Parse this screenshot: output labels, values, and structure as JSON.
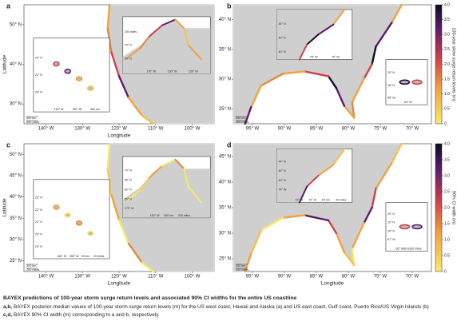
{
  "panels": [
    {
      "label": "a",
      "y_axis_label": "Latitude",
      "x_axis_label": "Longitude",
      "lat_ticks": [
        "50° N",
        "40° N",
        "30° N"
      ],
      "lon_ticks": [
        "140° W",
        "130° W",
        "120° W",
        "110° W",
        "100° W"
      ],
      "inset_texts": [
        "24° N",
        "22° N",
        "20° N",
        "160° W",
        "150° W",
        "300 km",
        "200 miles",
        "70° N",
        "60° N",
        "170° W",
        "150° W",
        "130° W"
      ],
      "scale": [
        "500 km",
        "500 miles"
      ]
    },
    {
      "label": "b",
      "lat_ticks": [
        "40° N",
        "35° N",
        "30° N",
        "25° N"
      ],
      "lon_ticks": [
        "95° W",
        "90° W",
        "85° W",
        "80° W",
        "75° W",
        "70° W"
      ],
      "inset_texts": [
        "44° N",
        "42° N",
        "40° N",
        "75° W",
        "70° W",
        "20° N",
        "18° N",
        "68° W",
        "64° W"
      ],
      "scale": [
        "500 km",
        "200 miles"
      ]
    },
    {
      "label": "c",
      "y_axis_label": "Latitude",
      "x_axis_label": "Longitude",
      "lat_ticks": [
        "50° N",
        "45° N",
        "40° N",
        "35° N",
        "30° N",
        "25° N"
      ],
      "lon_ticks": [
        "140° W",
        "130° W",
        "120° W",
        "110° W",
        "100° W"
      ],
      "inset_texts": [
        "23° N",
        "22° N",
        "21° N",
        "20° N",
        "19° N",
        "160° W",
        "156° W",
        "50 km",
        "20 miles",
        "70° N",
        "65° N",
        "60° N",
        "55° N",
        "170° W",
        "150° W",
        "500 km",
        "200 miles"
      ],
      "scale": [
        "300 km",
        "200 miles"
      ]
    },
    {
      "label": "d",
      "x_axis_label": "Longitude",
      "lat_ticks": [
        "45° N",
        "40° N",
        "35° N",
        "30° N",
        "25° N"
      ],
      "lon_ticks": [
        "95° W",
        "90° W",
        "85° W",
        "80° W",
        "75° W",
        "70° W"
      ],
      "inset_texts": [
        "44° N",
        "42° N",
        "40° N",
        "74° W",
        "72° W",
        "70° W",
        "50 km",
        "20 miles",
        "20° N",
        "19° N",
        "18° N",
        "67° W",
        "65° W",
        "50 km",
        "20 miles"
      ],
      "scale": [
        "200 km",
        "100 miles"
      ]
    }
  ],
  "colorbars": [
    {
      "title": "100-year skew surge return levels (m)",
      "ticks": [
        "0",
        "0.5",
        "1.0",
        "1.5",
        "2.0",
        "2.5",
        "3.0",
        "3.5",
        "4.0"
      ]
    },
    {
      "title": "90% CI width (m)",
      "ticks": [
        "0",
        "0.5",
        "1.0",
        "1.5",
        "2.0",
        "2.5",
        "3.0",
        "3.5",
        "4.0"
      ]
    }
  ],
  "caption": {
    "title": "BAYEX predictions of 100-year storm surge return levels and associated 90% CI widths for the entire US coastline",
    "lines": [
      {
        "label": "a,b,",
        "text": "BAYEX posterior-median values of 100-year storm surge return levels (m) for the US west coast, Hawaii and Alaska (a) and US east coast, Gulf coast, Puerto Rico/US Virgin Islands (b)"
      },
      {
        "label": "c,d,",
        "text": "BAYEX 90% CI width (m) corresponding to a and b, respectively."
      }
    ]
  }
}
